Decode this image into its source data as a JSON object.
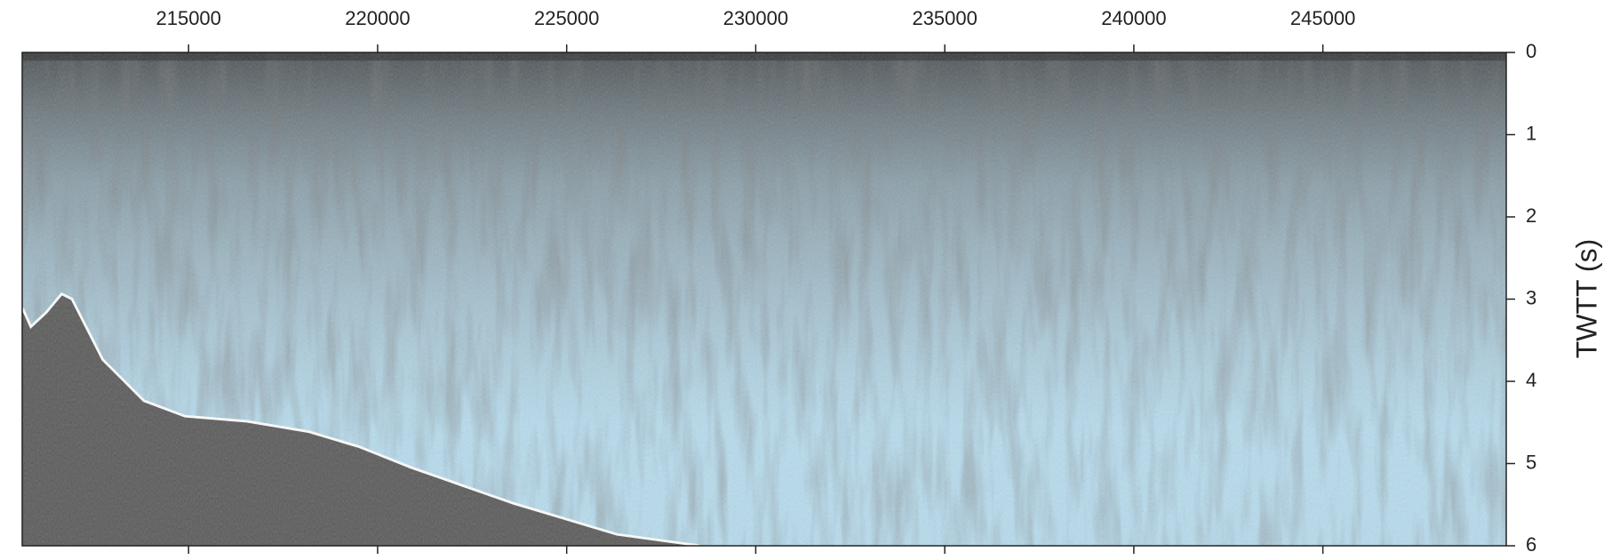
{
  "chart_data": {
    "type": "seismic-section",
    "ylabel": "TWTT (s)",
    "xlim": [
      210600,
      249850
    ],
    "xticks": [
      215000,
      220000,
      225000,
      230000,
      235000,
      240000,
      245000
    ],
    "ylim": [
      0,
      6
    ],
    "yticks": [
      0,
      1,
      2,
      3,
      4,
      5,
      6
    ],
    "y_inverted": true
  }
}
